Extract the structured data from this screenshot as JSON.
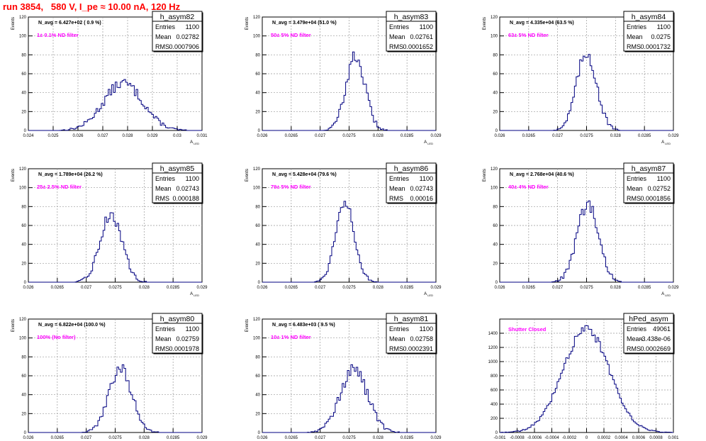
{
  "page": {
    "title": "run 3854,   580 V, I_pe ≈ 10.00 nA, 120 Hz"
  },
  "chart_data": [
    {
      "type": "histogram",
      "title": "h_asym82",
      "ylabel": "Events",
      "xlabel": "A_LED",
      "stats": {
        "entries": "1100",
        "mean": "0.02782",
        "rms": "0.0007906"
      },
      "navg_label": "N_avg = 6.427e+02 ( 0.9 %)",
      "filter_label": "1± 0.1% ND filter",
      "xlim": [
        0.024,
        0.031
      ],
      "ylim": [
        0,
        120
      ],
      "xticks": [
        0.024,
        0.025,
        0.026,
        0.027,
        0.028,
        0.029,
        0.03,
        0.031
      ],
      "xtick_labels": [
        "0.024",
        "0.025",
        "0.026",
        "0.027",
        "0.028",
        "0.029",
        "0.03",
        "0.031"
      ],
      "yticks": [
        0,
        20,
        40,
        60,
        80,
        100,
        120
      ],
      "yticklabels": [
        "0",
        "20",
        "40",
        "60",
        "80",
        "100",
        "120"
      ],
      "mean": 0.02782,
      "rms": 0.0007906,
      "peak": 50,
      "bins": 100
    },
    {
      "type": "histogram",
      "title": "h_asym83",
      "ylabel": "Events",
      "xlabel": "A_LED",
      "stats": {
        "entries": "1100",
        "mean": "0.02761",
        "rms": "0.0001652"
      },
      "navg_label": "N_avg = 3.479e+04 (51.0 %)",
      "filter_label": "50± 5% ND filter",
      "xlim": [
        0.026,
        0.029
      ],
      "ylim": [
        0,
        120
      ],
      "xticks": [
        0.026,
        0.0265,
        0.027,
        0.0275,
        0.028,
        0.0285,
        0.029
      ],
      "xtick_labels": [
        "0.026",
        "0.0265",
        "0.027",
        "0.0275",
        "0.028",
        "0.0285",
        "0.029"
      ],
      "yticks": [
        0,
        20,
        40,
        60,
        80,
        100,
        120
      ],
      "yticklabels": [
        "0",
        "20",
        "40",
        "60",
        "80",
        "100",
        "120"
      ],
      "mean": 0.02761,
      "rms": 0.0001652,
      "peak": 78,
      "bins": 100
    },
    {
      "type": "histogram",
      "title": "h_asym84",
      "ylabel": "Events",
      "xlabel": "A_LED",
      "stats": {
        "entries": "1100",
        "mean": "0.0275",
        "rms": "0.0001732"
      },
      "navg_label": "N_avg = 4.335e+04 (63.5 %)",
      "filter_label": "63± 5% ND filter",
      "xlim": [
        0.026,
        0.029
      ],
      "ylim": [
        0,
        120
      ],
      "xticks": [
        0.026,
        0.0265,
        0.027,
        0.0275,
        0.028,
        0.0285,
        0.029
      ],
      "xtick_labels": [
        "0.026",
        "0.0265",
        "0.027",
        "0.0275",
        "0.028",
        "0.0285",
        "0.029"
      ],
      "yticks": [
        0,
        20,
        40,
        60,
        80,
        100,
        120
      ],
      "yticklabels": [
        "0",
        "20",
        "40",
        "60",
        "80",
        "100",
        "120"
      ],
      "mean": 0.0275,
      "rms": 0.0001732,
      "peak": 82,
      "bins": 100
    },
    {
      "type": "histogram",
      "title": "h_asym85",
      "ylabel": "Events",
      "xlabel": "A_LED",
      "stats": {
        "entries": "1100",
        "mean": "0.02743",
        "rms": "0.000188"
      },
      "navg_label": "N_avg = 1.789e+04 (26.2 %)",
      "filter_label": "25± 2.5% ND filter",
      "xlim": [
        0.026,
        0.029
      ],
      "ylim": [
        0,
        120
      ],
      "xticks": [
        0.026,
        0.0265,
        0.027,
        0.0275,
        0.028,
        0.0285,
        0.029
      ],
      "xtick_labels": [
        "0.026",
        "0.0265",
        "0.027",
        "0.0275",
        "0.028",
        "0.0285",
        "0.029"
      ],
      "yticks": [
        0,
        20,
        40,
        60,
        80,
        100,
        120
      ],
      "yticklabels": [
        "0",
        "20",
        "40",
        "60",
        "80",
        "100",
        "120"
      ],
      "mean": 0.02743,
      "rms": 0.000188,
      "peak": 72,
      "bins": 100
    },
    {
      "type": "histogram",
      "title": "h_asym86",
      "ylabel": "Events",
      "xlabel": "A_LED",
      "stats": {
        "entries": "1100",
        "mean": "0.02743",
        "rms": "0.00016"
      },
      "navg_label": "N_avg = 5.428e+04 (79.6 %)",
      "filter_label": "79± 5% ND filter",
      "xlim": [
        0.026,
        0.029
      ],
      "ylim": [
        0,
        120
      ],
      "xticks": [
        0.026,
        0.0265,
        0.027,
        0.0275,
        0.028,
        0.0285,
        0.029
      ],
      "xtick_labels": [
        "0.026",
        "0.0265",
        "0.027",
        "0.0275",
        "0.028",
        "0.0285",
        "0.029"
      ],
      "yticks": [
        0,
        20,
        40,
        60,
        80,
        100,
        120
      ],
      "yticklabels": [
        "0",
        "20",
        "40",
        "60",
        "80",
        "100",
        "120"
      ],
      "mean": 0.02743,
      "rms": 0.00016,
      "peak": 87,
      "bins": 100
    },
    {
      "type": "histogram",
      "title": "h_asym87",
      "ylabel": "Events",
      "xlabel": "A_LED",
      "stats": {
        "entries": "1100",
        "mean": "0.02752",
        "rms": "0.0001856"
      },
      "navg_label": "N_avg = 2.768e+04 (40.6 %)",
      "filter_label": "40± 4% ND filter",
      "xlim": [
        0.026,
        0.029
      ],
      "ylim": [
        0,
        120
      ],
      "xticks": [
        0.026,
        0.0265,
        0.027,
        0.0275,
        0.028,
        0.0285,
        0.029
      ],
      "xtick_labels": [
        "0.026",
        "0.0265",
        "0.027",
        "0.0275",
        "0.028",
        "0.0285",
        "0.029"
      ],
      "yticks": [
        0,
        20,
        40,
        60,
        80,
        100,
        120
      ],
      "yticklabels": [
        "0",
        "20",
        "40",
        "60",
        "80",
        "100",
        "120"
      ],
      "mean": 0.02752,
      "rms": 0.0001856,
      "peak": 82,
      "bins": 100
    },
    {
      "type": "histogram",
      "title": "h_asym80",
      "ylabel": "Events",
      "xlabel": "A_LED",
      "stats": {
        "entries": "1100",
        "mean": "0.02759",
        "rms": "0.0001978"
      },
      "navg_label": "N_avg = 6.822e+04 (100.0 %)",
      "filter_label": "100% (No filter)",
      "xlim": [
        0.026,
        0.029
      ],
      "ylim": [
        0,
        120
      ],
      "xticks": [
        0.026,
        0.0265,
        0.027,
        0.0275,
        0.028,
        0.0285,
        0.029
      ],
      "xtick_labels": [
        "0.026",
        "0.0265",
        "0.027",
        "0.0275",
        "0.028",
        "0.0285",
        "0.029"
      ],
      "yticks": [
        0,
        20,
        40,
        60,
        80,
        100,
        120
      ],
      "yticklabels": [
        "0",
        "20",
        "40",
        "60",
        "80",
        "100",
        "120"
      ],
      "mean": 0.02759,
      "rms": 0.0001978,
      "peak": 68,
      "bins": 100
    },
    {
      "type": "histogram",
      "title": "h_asym81",
      "ylabel": "Events",
      "xlabel": "A_LED",
      "stats": {
        "entries": "1100",
        "mean": "0.02758",
        "rms": "0.0002391"
      },
      "navg_label": "N_avg = 6.483e+03 ( 9.5 %)",
      "filter_label": "10± 1% ND filter",
      "xlim": [
        0.026,
        0.029
      ],
      "ylim": [
        0,
        120
      ],
      "xticks": [
        0.026,
        0.0265,
        0.027,
        0.0275,
        0.028,
        0.0285,
        0.029
      ],
      "xtick_labels": [
        "0.026",
        "0.0265",
        "0.027",
        "0.0275",
        "0.028",
        "0.0285",
        "0.029"
      ],
      "yticks": [
        0,
        20,
        40,
        60,
        80,
        100,
        120
      ],
      "yticklabels": [
        "0",
        "20",
        "40",
        "60",
        "80",
        "100",
        "120"
      ],
      "mean": 0.02758,
      "rms": 0.0002391,
      "peak": 66,
      "bins": 100
    },
    {
      "type": "histogram",
      "title": "hPed_asym",
      "ylabel": "",
      "xlabel": "",
      "stats": {
        "entries": "49061",
        "mean": "-3.438e-06",
        "rms": "0.0002669"
      },
      "navg_label": "",
      "filter_label": "Shutter Closed",
      "xlim": [
        -0.001,
        0.001
      ],
      "ylim": [
        0,
        1600
      ],
      "xticks": [
        -0.001,
        -0.0008,
        -0.0006,
        -0.0004,
        -0.0002,
        0,
        0.0002,
        0.0004,
        0.0006,
        0.0008,
        0.001
      ],
      "xtick_labels": [
        "-0.001",
        "-0.0008",
        "-0.0006",
        "-0.0004",
        "-0.0002",
        "0",
        "0.0002",
        "0.0004",
        "0.0006",
        "0.0008",
        "0.001"
      ],
      "yticks": [
        0,
        200,
        400,
        600,
        800,
        1000,
        1200,
        1400
      ],
      "yticklabels": [
        "0",
        "200",
        "400",
        "600",
        "800",
        "1000",
        "1200",
        "1400"
      ],
      "mean": -3.438e-06,
      "rms": 0.0002669,
      "peak": 1460,
      "bins": 100
    }
  ]
}
